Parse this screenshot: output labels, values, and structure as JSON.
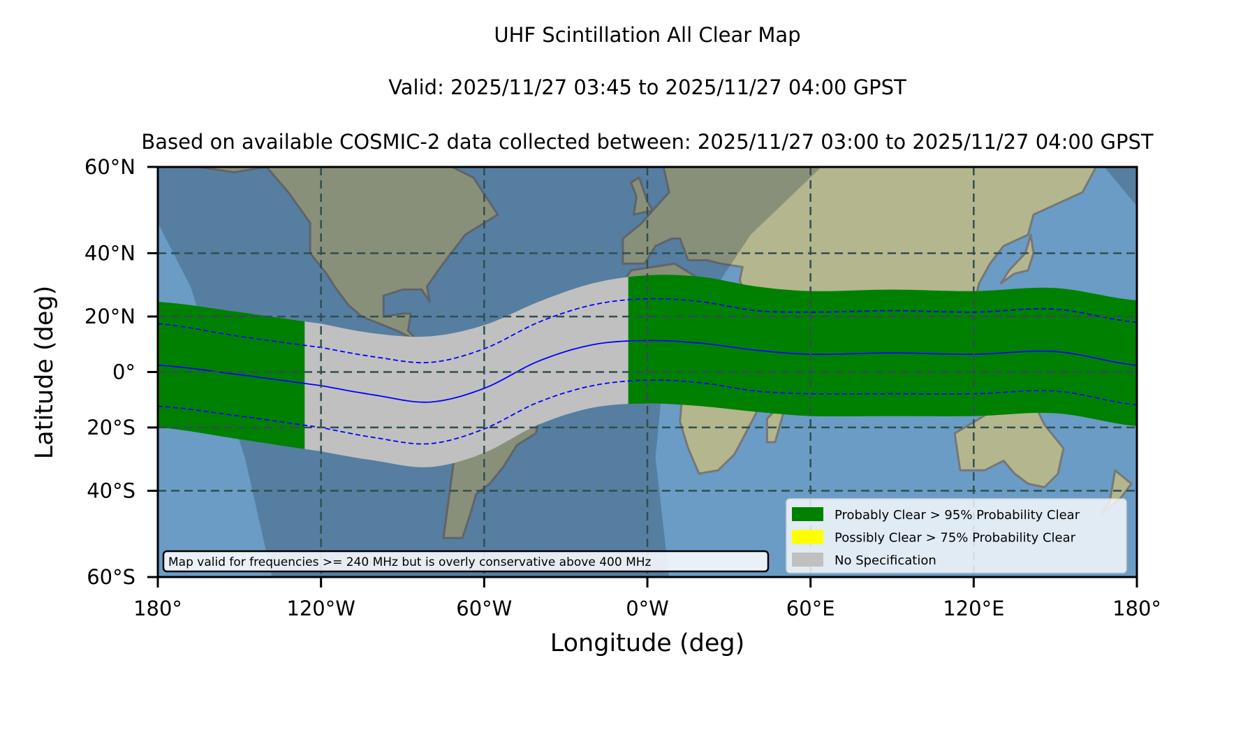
{
  "titles": {
    "line1": "UHF Scintillation All Clear Map",
    "line2": "Valid: 2025/11/27 03:45 to 2025/11/27 04:00 GPST",
    "line3": "Based on available COSMIC-2 data collected between: 2025/11/27 03:00 to 2025/11/27 04:00 GPST"
  },
  "note": "Map valid for frequencies >= 240 MHz but is overly conservative above 400 MHz",
  "colors": {
    "probably_clear": "#008000",
    "possibly_clear": "#ffff00",
    "no_spec": "#c0c0c0",
    "center_line": "#0000ff",
    "grid": "#2f4f4f",
    "ocean": "#6a9cc6",
    "land": "#b4b68e"
  },
  "chart_data": {
    "type": "area",
    "projection": "mercator",
    "title": "UHF Scintillation All Clear Map",
    "xlabel": "Longitude (deg)",
    "ylabel": "Latitude (deg)",
    "xlim": [
      -180,
      180
    ],
    "ylim": [
      -60,
      60
    ],
    "grid": true,
    "xticks": [
      {
        "value": -180,
        "label": "180°"
      },
      {
        "value": -120,
        "label": "120°W"
      },
      {
        "value": -60,
        "label": "60°W"
      },
      {
        "value": 0,
        "label": "0°W"
      },
      {
        "value": 60,
        "label": "60°E"
      },
      {
        "value": 120,
        "label": "120°E"
      },
      {
        "value": 180,
        "label": "180°"
      }
    ],
    "yticks": [
      {
        "value": 60,
        "label": "60°N"
      },
      {
        "value": 40,
        "label": "40°N"
      },
      {
        "value": 20,
        "label": "20°N"
      },
      {
        "value": 0,
        "label": "0°"
      },
      {
        "value": -20,
        "label": "20°S"
      },
      {
        "value": -40,
        "label": "40°S"
      },
      {
        "value": -60,
        "label": "60°S"
      }
    ],
    "lon": [
      -180,
      -150,
      -120,
      -100,
      -80,
      -60,
      -40,
      -20,
      0,
      20,
      40,
      60,
      90,
      120,
      150,
      180
    ],
    "series": [
      {
        "name": "band_top",
        "values": [
          25,
          21.5,
          17.5,
          14,
          13,
          17,
          25,
          31,
          33.5,
          33,
          30,
          28.5,
          29,
          28.5,
          29.5,
          25.5
        ]
      },
      {
        "name": "band_bottom",
        "values": [
          -20,
          -24,
          -28,
          -31,
          -33,
          -28.5,
          -19,
          -13,
          -11.5,
          -12.5,
          -14.5,
          -16,
          -16,
          -16,
          -15,
          -19.5
        ]
      },
      {
        "name": "upper_dashed",
        "values": [
          17.5,
          13,
          9,
          5.5,
          3.5,
          8.5,
          18,
          24,
          26,
          25,
          22,
          21.5,
          22,
          21.5,
          22.5,
          18
        ]
      },
      {
        "name": "center",
        "values": [
          2.5,
          -1,
          -5,
          -8.5,
          -11,
          -6,
          4,
          10,
          11.5,
          10.5,
          8,
          6.5,
          7,
          6.5,
          7.5,
          2.5
        ]
      },
      {
        "name": "lower_dashed",
        "values": [
          -12.5,
          -16,
          -20,
          -23.5,
          -25.5,
          -20.5,
          -11,
          -5,
          -3,
          -4,
          -7,
          -8,
          -8,
          -8,
          -7,
          -12
        ]
      }
    ],
    "segments": [
      {
        "from": -180,
        "to": -126,
        "class": "probably_clear"
      },
      {
        "from": -126,
        "to": -7,
        "class": "no_spec"
      },
      {
        "from": -7,
        "to": 180,
        "class": "probably_clear"
      }
    ],
    "legend": {
      "placement": "lower-right",
      "entries": [
        {
          "label": "Probably Clear > 95% Probability Clear",
          "color": "#008000"
        },
        {
          "label": "Possibly Clear > 75% Probability Clear",
          "color": "#ffff00"
        },
        {
          "label": "No Specification",
          "color": "#c0c0c0"
        }
      ]
    }
  }
}
